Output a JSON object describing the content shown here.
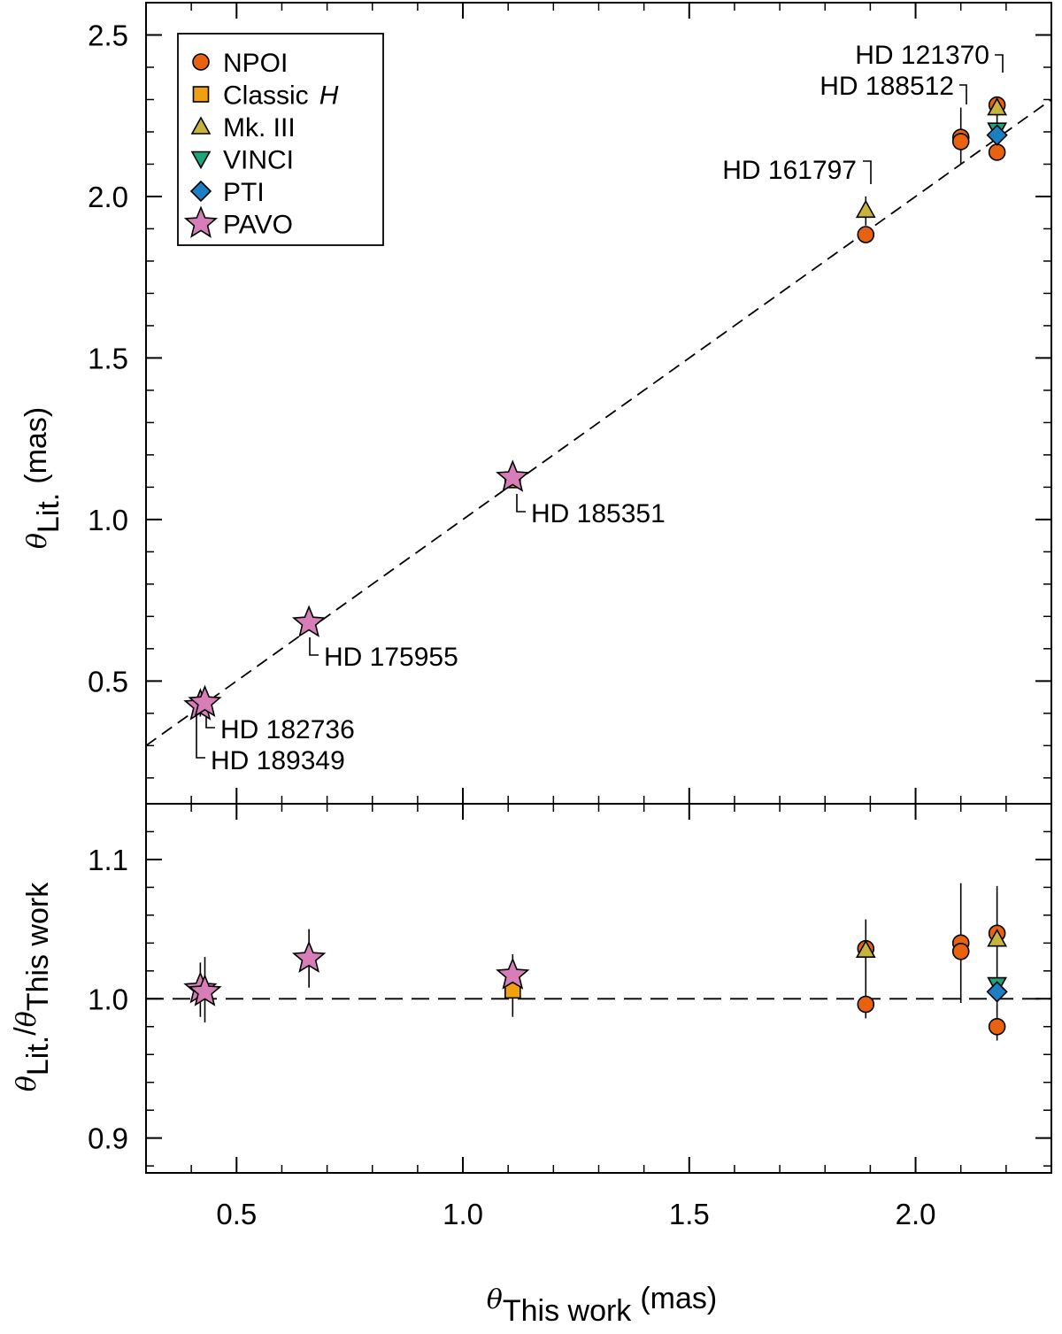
{
  "chart_data": [
    {
      "type": "scatter",
      "panel": "top",
      "xlim": [
        0.3,
        2.3
      ],
      "ylim": [
        0.12,
        2.6
      ],
      "yticks": [
        0.5,
        1.0,
        1.5,
        2.0,
        2.5
      ],
      "ytick_labels": [
        "0.5",
        "1.0",
        "1.5",
        "2.0",
        "2.5"
      ],
      "ylabel": {
        "symbol": "θ",
        "subscript": "Lit.",
        "unit": "(mas)"
      },
      "reference_line": {
        "style": "dashed",
        "x": [
          0.3,
          2.3
        ],
        "y": [
          0.3,
          2.3
        ]
      },
      "legend": {
        "placement": "top-left",
        "entries": [
          {
            "label": "NPOI",
            "italic_suffix": "",
            "marker": "circle",
            "color": "#e8620f"
          },
          {
            "label": "Classic",
            "italic_suffix": "H",
            "marker": "square",
            "color": "#f0a010"
          },
          {
            "label": "Mk. III",
            "italic_suffix": "",
            "marker": "triangle-up",
            "color": "#c8b43c"
          },
          {
            "label": "VINCI",
            "italic_suffix": "",
            "marker": "triangle-down",
            "color": "#1fa37a"
          },
          {
            "label": "PTI",
            "italic_suffix": "",
            "marker": "diamond",
            "color": "#1c7fc4"
          },
          {
            "label": "PAVO",
            "italic_suffix": "",
            "marker": "star",
            "color": "#d77eb8"
          }
        ]
      },
      "series": [
        {
          "name": "NPOI",
          "points": [
            {
              "x": 1.89,
              "y": 1.882
            },
            {
              "x": 2.1,
              "y": 2.183
            },
            {
              "x": 2.1,
              "y": 2.17
            },
            {
              "x": 2.18,
              "y": 2.283
            },
            {
              "x": 2.18,
              "y": 2.137
            }
          ]
        },
        {
          "name": "Classic H",
          "points": [
            {
              "x": 1.11,
              "y": 1.122
            }
          ]
        },
        {
          "name": "Mk. III",
          "points": [
            {
              "x": 1.89,
              "y": 1.958
            },
            {
              "x": 2.18,
              "y": 2.275
            }
          ]
        },
        {
          "name": "VINCI",
          "points": [
            {
              "x": 2.18,
              "y": 2.205
            }
          ]
        },
        {
          "name": "PTI",
          "points": [
            {
              "x": 2.18,
              "y": 2.19
            }
          ]
        },
        {
          "name": "PAVO",
          "points": [
            {
              "x": 0.42,
              "y": 0.423
            },
            {
              "x": 0.43,
              "y": 0.433
            },
            {
              "x": 0.66,
              "y": 0.68
            },
            {
              "x": 1.11,
              "y": 1.13
            }
          ]
        }
      ],
      "error_bars": [
        {
          "x": 2.1,
          "y_low": 2.1,
          "y_high": 2.275
        },
        {
          "x": 1.89,
          "y_low": 1.91,
          "y_high": 2.0
        },
        {
          "x": 2.18,
          "y_low": 2.17,
          "y_high": 2.31
        },
        {
          "x": 0.42,
          "y_low": 0.39,
          "y_high": 0.45
        },
        {
          "x": 0.43,
          "y_low": 0.4,
          "y_high": 0.46
        }
      ],
      "annotations": [
        {
          "text": "HD 121370",
          "target_x": 2.18,
          "direction": "above-left"
        },
        {
          "text": "HD 188512",
          "target_x": 2.1,
          "direction": "above-left"
        },
        {
          "text": "HD 161797",
          "target_x": 1.89,
          "direction": "above-left"
        },
        {
          "text": "HD 185351",
          "target_x": 1.11,
          "direction": "below-right"
        },
        {
          "text": "HD 175955",
          "target_x": 0.66,
          "direction": "below-right"
        },
        {
          "text": "HD 182736",
          "target_x": 0.43,
          "direction": "below-right"
        },
        {
          "text": "HD 189349",
          "target_x": 0.42,
          "direction": "below-right"
        }
      ]
    },
    {
      "type": "scatter",
      "panel": "bottom",
      "xlim": [
        0.3,
        2.3
      ],
      "ylim": [
        0.875,
        1.14
      ],
      "yticks": [
        0.9,
        1.0,
        1.1
      ],
      "ytick_labels": [
        "0.9",
        "1.0",
        "1.1"
      ],
      "xticks": [
        0.5,
        1.0,
        1.5,
        2.0
      ],
      "xtick_labels": [
        "0.5",
        "1.0",
        "1.5",
        "2.0"
      ],
      "xlabel": {
        "symbol": "θ",
        "subscript": "This work",
        "unit": "(mas)"
      },
      "ylabel": {
        "symbol": "θ",
        "subscript": "Lit.",
        "slash": "/",
        "symbol2": "θ",
        "subscript2": "This work"
      },
      "reference_line": {
        "style": "dashed",
        "y": 1.0
      },
      "series": [
        {
          "name": "NPOI",
          "points": [
            {
              "x": 1.89,
              "y": 0.996
            },
            {
              "x": 1.89,
              "y": 1.036
            },
            {
              "x": 2.1,
              "y": 1.04
            },
            {
              "x": 2.1,
              "y": 1.034
            },
            {
              "x": 2.18,
              "y": 1.047
            },
            {
              "x": 2.18,
              "y": 0.98
            }
          ]
        },
        {
          "name": "Classic H",
          "points": [
            {
              "x": 1.11,
              "y": 1.006
            }
          ]
        },
        {
          "name": "Mk. III",
          "points": [
            {
              "x": 1.89,
              "y": 1.035
            },
            {
              "x": 2.18,
              "y": 1.043
            }
          ]
        },
        {
          "name": "VINCI",
          "points": [
            {
              "x": 2.18,
              "y": 1.01
            }
          ]
        },
        {
          "name": "PTI",
          "points": [
            {
              "x": 2.18,
              "y": 1.005
            }
          ]
        },
        {
          "name": "PAVO",
          "points": [
            {
              "x": 0.42,
              "y": 1.007
            },
            {
              "x": 0.43,
              "y": 1.005
            },
            {
              "x": 0.66,
              "y": 1.029
            },
            {
              "x": 1.11,
              "y": 1.017
            }
          ]
        }
      ],
      "error_bars": [
        {
          "x": 0.42,
          "y_low": 0.987,
          "y_high": 1.026
        },
        {
          "x": 0.43,
          "y_low": 0.983,
          "y_high": 1.03
        },
        {
          "x": 0.66,
          "y_low": 1.008,
          "y_high": 1.05
        },
        {
          "x": 1.11,
          "y_low": 0.987,
          "y_high": 1.032
        },
        {
          "x": 1.89,
          "y_low": 0.986,
          "y_high": 1.057
        },
        {
          "x": 2.1,
          "y_low": 0.997,
          "y_high": 1.083
        },
        {
          "x": 2.18,
          "y_low": 0.97,
          "y_high": 1.081
        }
      ]
    }
  ]
}
